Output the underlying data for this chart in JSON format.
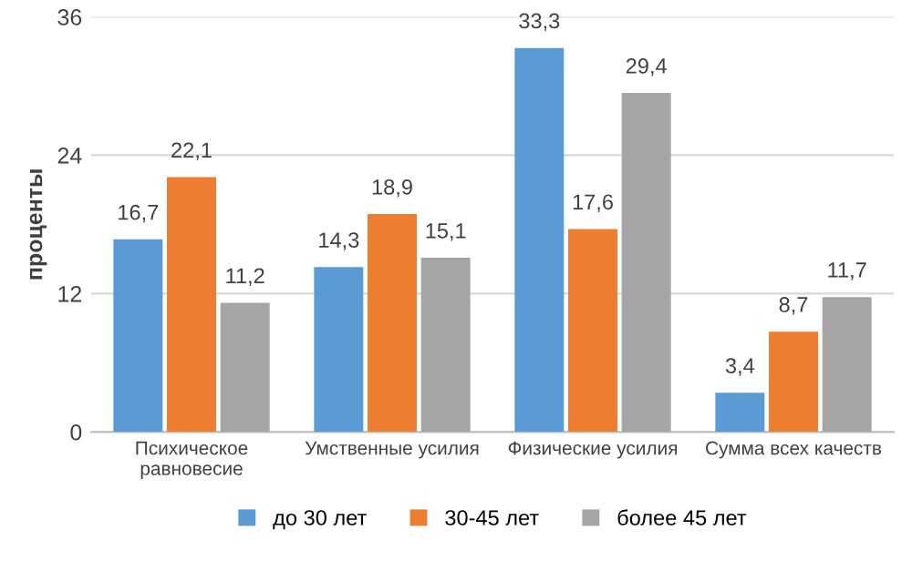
{
  "chart_data": {
    "type": "bar",
    "ylabel": "проценты",
    "categories": [
      "Психическое\nравновесие",
      "Умственные усилия",
      "Физические усилия",
      "Сумма всех качеств"
    ],
    "series": [
      {
        "name": "до 30 лет",
        "color": "#5b9bd5",
        "values": [
          16.7,
          14.3,
          33.3,
          3.4
        ],
        "value_labels": [
          "16,7",
          "14,3",
          "33,3",
          "3,4"
        ]
      },
      {
        "name": "30-45 лет",
        "color": "#ed7d31",
        "values": [
          22.1,
          18.9,
          17.6,
          8.7
        ],
        "value_labels": [
          "22,1",
          "18,9",
          "17,6",
          "8,7"
        ]
      },
      {
        "name": "более 45 лет",
        "color": "#a5a5a5",
        "values": [
          11.2,
          15.1,
          29.4,
          11.7
        ],
        "value_labels": [
          "11,2",
          "15,1",
          "29,4",
          "11,7"
        ]
      }
    ],
    "ylim": [
      0,
      36
    ],
    "yticks": [
      0,
      12,
      24,
      36
    ],
    "grid": "y",
    "legend": "bottom"
  }
}
